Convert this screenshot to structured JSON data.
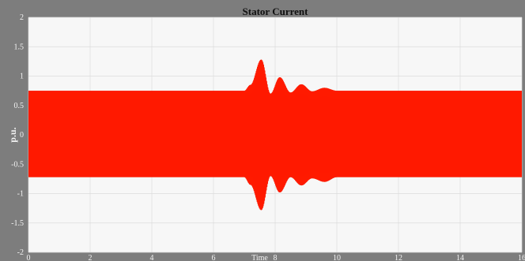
{
  "chart_data": {
    "type": "line",
    "title": "Stator Current",
    "xlabel": "Time",
    "ylabel": "p.u.",
    "xlim": [
      0,
      16
    ],
    "ylim": [
      -2,
      2
    ],
    "x_ticks": [
      0,
      2,
      4,
      6,
      8,
      10,
      12,
      14,
      16
    ],
    "y_ticks": [
      2,
      1.5,
      1,
      0.5,
      0,
      -0.5,
      -1,
      -1.5,
      -2
    ],
    "grid": true,
    "colors": {
      "phase_a": "#ff1a00",
      "phase_b": "#c83a05",
      "plot_background": "#f7f7f7",
      "frame": "#7d7d7d"
    },
    "series": [
      {
        "values": {
          "envelope_x": [
            0,
            7.0,
            7.2,
            7.55,
            7.85,
            8.15,
            8.5,
            8.85,
            9.2,
            9.6,
            10.0,
            16
          ],
          "envelope_upper": [
            0.75,
            0.75,
            0.85,
            1.28,
            0.7,
            0.98,
            0.72,
            0.86,
            0.74,
            0.8,
            0.75,
            0.75
          ],
          "envelope_lower": [
            -0.72,
            -0.72,
            -0.85,
            -1.28,
            -0.7,
            -0.98,
            -0.72,
            -0.86,
            -0.74,
            -0.8,
            -0.72,
            -0.72
          ]
        }
      }
    ]
  }
}
